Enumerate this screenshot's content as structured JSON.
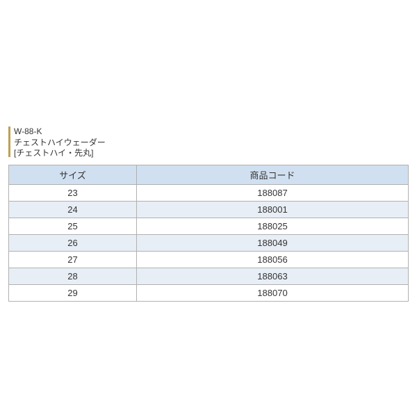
{
  "product": {
    "code": "W-88-K",
    "name": "チェストハイウェーダー",
    "subtitle": "[チェストハイ・先丸]"
  },
  "table": {
    "columns": [
      "サイズ",
      "商品コード"
    ],
    "rows": [
      {
        "size": "23",
        "code": "188087"
      },
      {
        "size": "24",
        "code": "188001"
      },
      {
        "size": "25",
        "code": "188025"
      },
      {
        "size": "26",
        "code": "188049"
      },
      {
        "size": "27",
        "code": "188056"
      },
      {
        "size": "28",
        "code": "188063"
      },
      {
        "size": "29",
        "code": "188070"
      }
    ]
  },
  "colors": {
    "header_bg": "#d0e0f0",
    "row_alt_bg": "#e8eef6",
    "row_norm_bg": "#ffffff",
    "border": "#b0b0b0",
    "accent_bar": "#c0a050",
    "text": "#333333"
  }
}
